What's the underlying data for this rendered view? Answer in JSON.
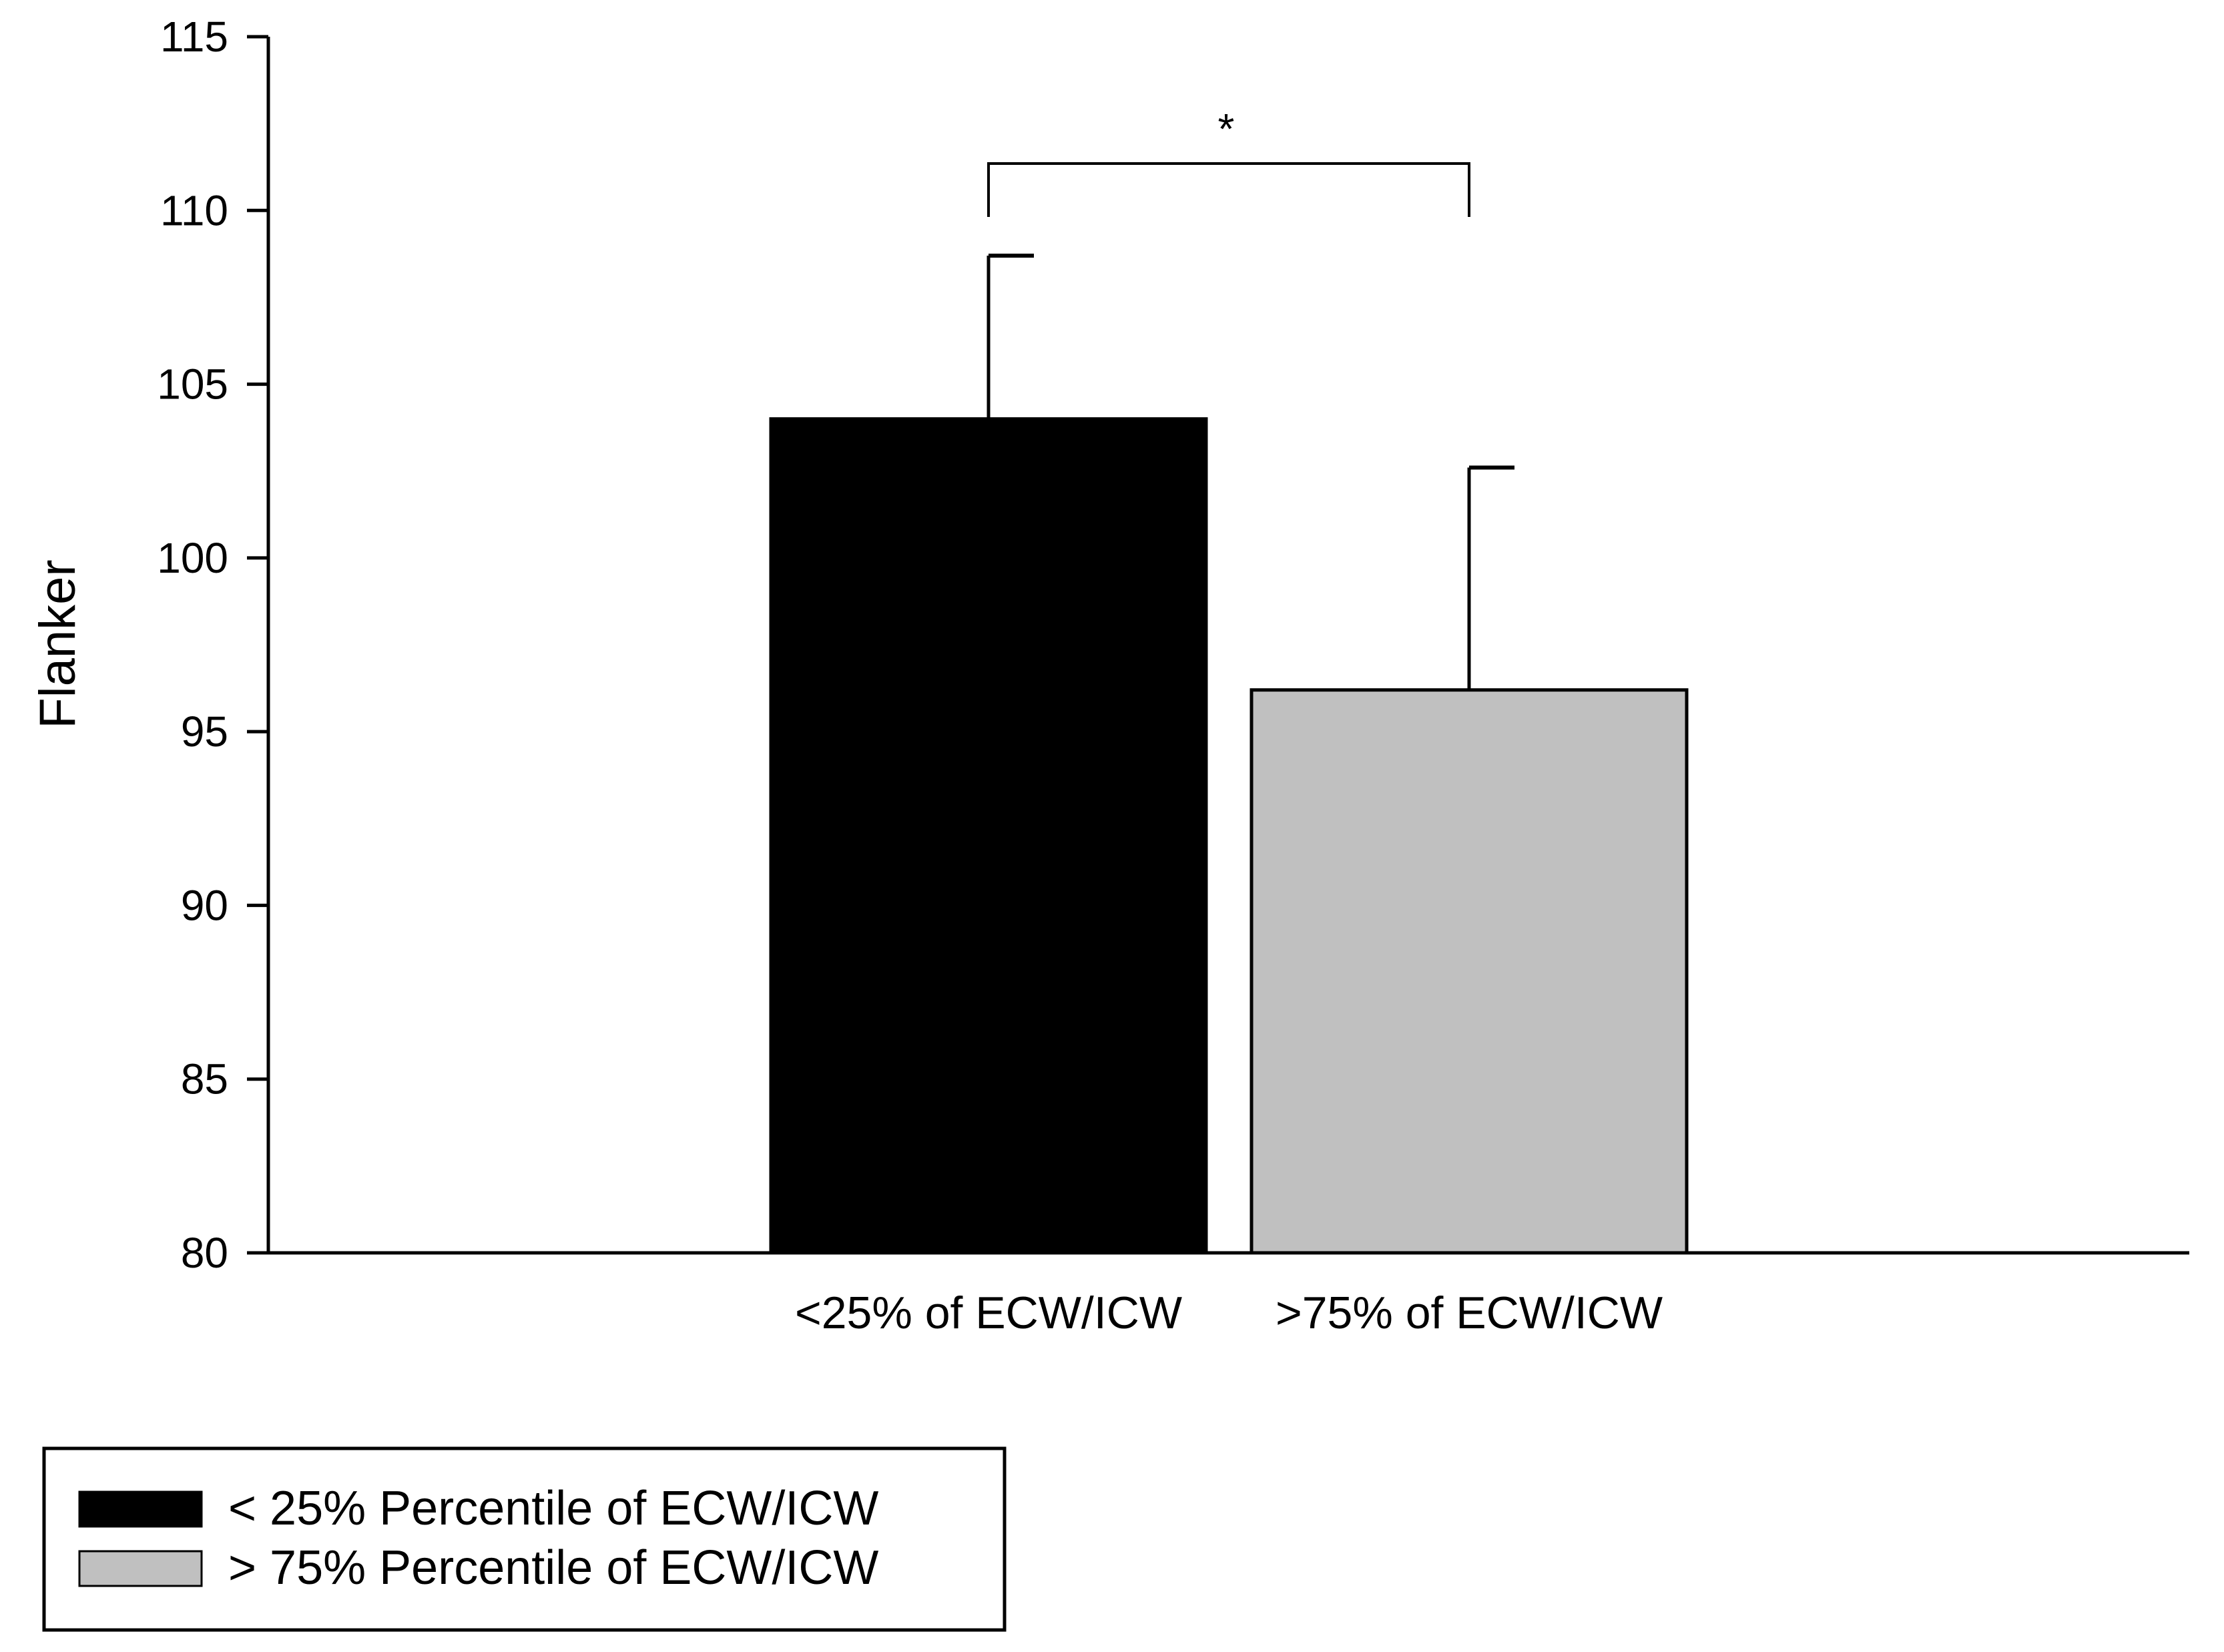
{
  "chart_data": {
    "type": "bar",
    "ylabel": "Flanker",
    "xlabel": "",
    "ylim": [
      80,
      115
    ],
    "yticks": [
      80,
      85,
      90,
      95,
      100,
      105,
      110,
      115
    ],
    "categories": [
      "<25% of ECW/ICW",
      ">75% of ECW/ICW"
    ],
    "values": [
      104.0,
      96.2
    ],
    "error_upper": [
      4.7,
      6.4
    ],
    "colors": [
      "#000000",
      "#c0c0c0"
    ],
    "annotation": "*",
    "grid": false,
    "legend": {
      "placement": "bottom-left",
      "entries": [
        {
          "label": "< 25% Percentile of ECW/ICW",
          "color": "#000000"
        },
        {
          "label": "> 75% Percentile of ECW/ICW",
          "color": "#c0c0c0"
        }
      ]
    }
  }
}
